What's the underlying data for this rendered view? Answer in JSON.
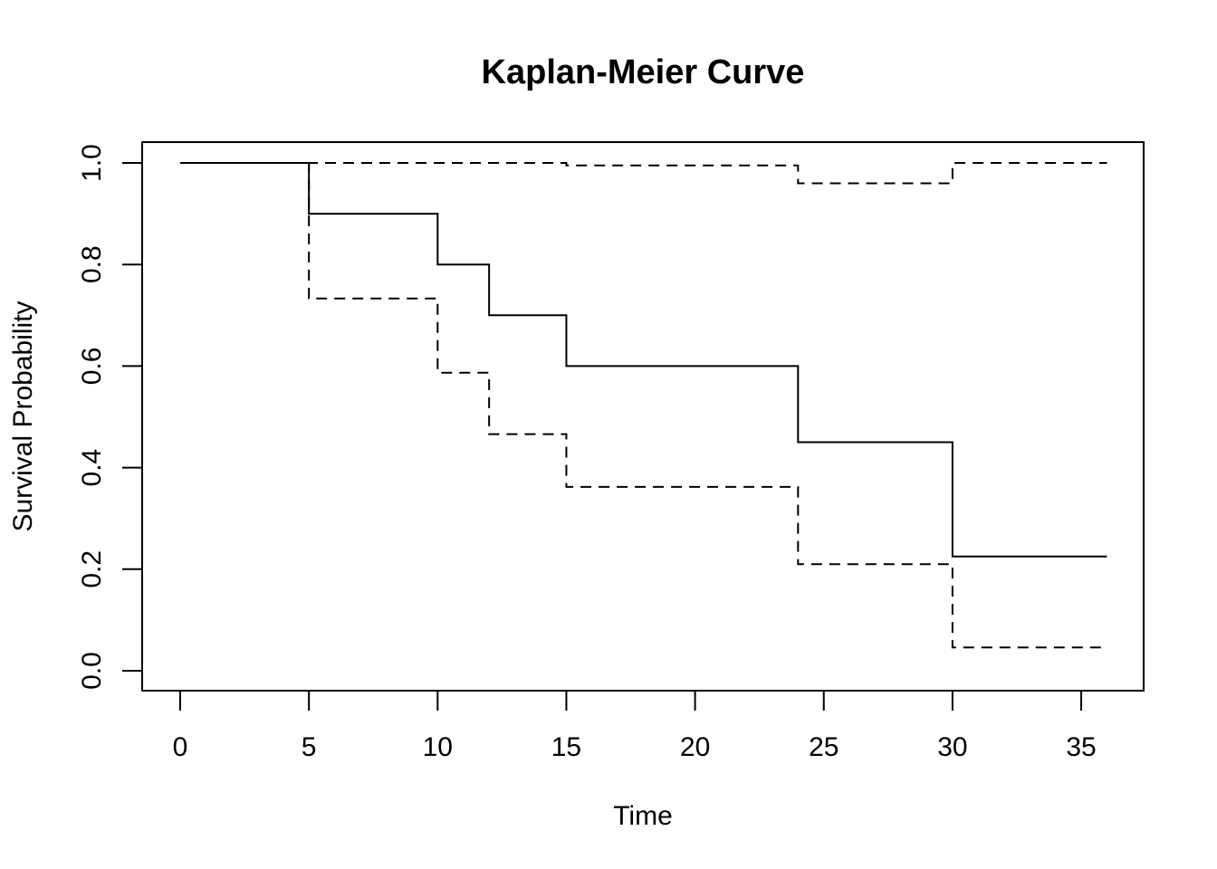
{
  "chart_data": {
    "type": "line",
    "title": "Kaplan-Meier Curve",
    "xlabel": "Time",
    "ylabel": "Survival Probability",
    "xlim": [
      0,
      36
    ],
    "ylim": [
      0,
      1
    ],
    "xticks": [
      0,
      5,
      10,
      15,
      20,
      25,
      30,
      35
    ],
    "yticks": [
      0.0,
      0.2,
      0.4,
      0.6,
      0.8,
      1.0
    ],
    "xtick_labels": [
      "0",
      "5",
      "10",
      "15",
      "20",
      "25",
      "30",
      "35"
    ],
    "ytick_labels": [
      "0.0",
      "0.2",
      "0.4",
      "0.6",
      "0.8",
      "1.0"
    ],
    "grid": false,
    "series": [
      {
        "style": "solid",
        "step": true,
        "x": [
          0,
          5,
          10,
          12,
          15,
          24,
          30,
          36
        ],
        "y": [
          1.0,
          0.9,
          0.8,
          0.7,
          0.6,
          0.45,
          0.225,
          0.225
        ]
      },
      {
        "style": "dashed",
        "step": true,
        "x": [
          0,
          5,
          10,
          12,
          15,
          24,
          30,
          36
        ],
        "y": [
          1.0,
          0.733,
          0.587,
          0.466,
          0.362,
          0.21,
          0.046,
          0.046
        ]
      },
      {
        "style": "dashed",
        "step": true,
        "x": [
          0,
          5,
          15,
          24,
          30,
          36
        ],
        "y": [
          1.0,
          1.0,
          0.995,
          0.96,
          1.0,
          1.0
        ]
      }
    ]
  }
}
